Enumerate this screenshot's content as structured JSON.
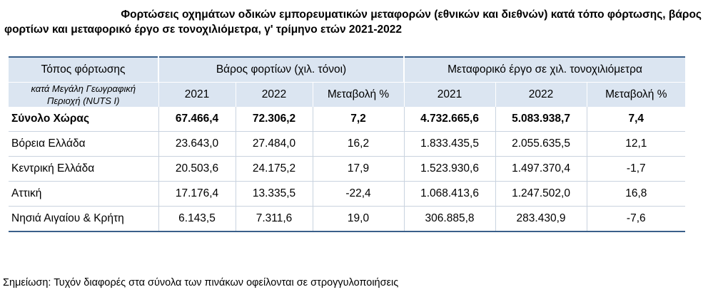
{
  "title": {
    "line1": "Φορτώσεις οχημάτων οδικών εμπορευματικών μεταφορών (εθνικών και διεθνών) κατά τόπο φόρτωσης, βάρος",
    "line2": "φορτίων και μεταφορικό έργο σε τονοχιλιόμετρα, γ' τρίμηνο ετών 2021-2022"
  },
  "table": {
    "header": {
      "place": "Τόπος φόρτωσης",
      "weight_group": "Βάρος φορτίων (χιλ. τόνοι)",
      "work_group": "Μεταφορικό έργο σε χιλ. τονοχιλιόμετρα",
      "region_note_line1": "κατά Μεγάλη Γεωγραφική",
      "region_note_line2": "Περιοχή  (NUTS I)",
      "y2021": "2021",
      "y2022": "2022",
      "change": "Μεταβολή %"
    },
    "rows": [
      {
        "name": "Σύνολο Χώρας",
        "w2021": "67.466,4",
        "w2022": "72.306,2",
        "wchg": "7,2",
        "t2021": "4.732.665,6",
        "t2022": "5.083.938,7",
        "tchg": "7,4"
      },
      {
        "name": "Βόρεια Ελλάδα",
        "w2021": "23.643,0",
        "w2022": "27.484,0",
        "wchg": "16,2",
        "t2021": "1.833.435,5",
        "t2022": "2.055.635,5",
        "tchg": "12,1"
      },
      {
        "name": "Κεντρική Ελλάδα",
        "w2021": "20.503,6",
        "w2022": "24.175,2",
        "wchg": "17,9",
        "t2021": "1.523.930,6",
        "t2022": "1.497.370,4",
        "tchg": "-1,7"
      },
      {
        "name": "Αττική",
        "w2021": "17.176,4",
        "w2022": "13.335,5",
        "wchg": "-22,4",
        "t2021": "1.068.413,6",
        "t2022": "1.247.502,0",
        "tchg": "16,8"
      },
      {
        "name": "Νησιά Αιγαίου & Κρήτη",
        "w2021": "6.143,5",
        "w2022": "7.311,6",
        "wchg": "19,0",
        "t2021": "306.885,8",
        "t2022": "283.430,9",
        "tchg": "-7,6"
      }
    ]
  },
  "note": "Σημείωση: Τυχόν διαφορές στα σύνολα των πινάκων οφείλονται σε στρογγυλοποιήσεις",
  "colors": {
    "header_bg": "#dbe5f1",
    "rule": "#3a5f8a"
  }
}
